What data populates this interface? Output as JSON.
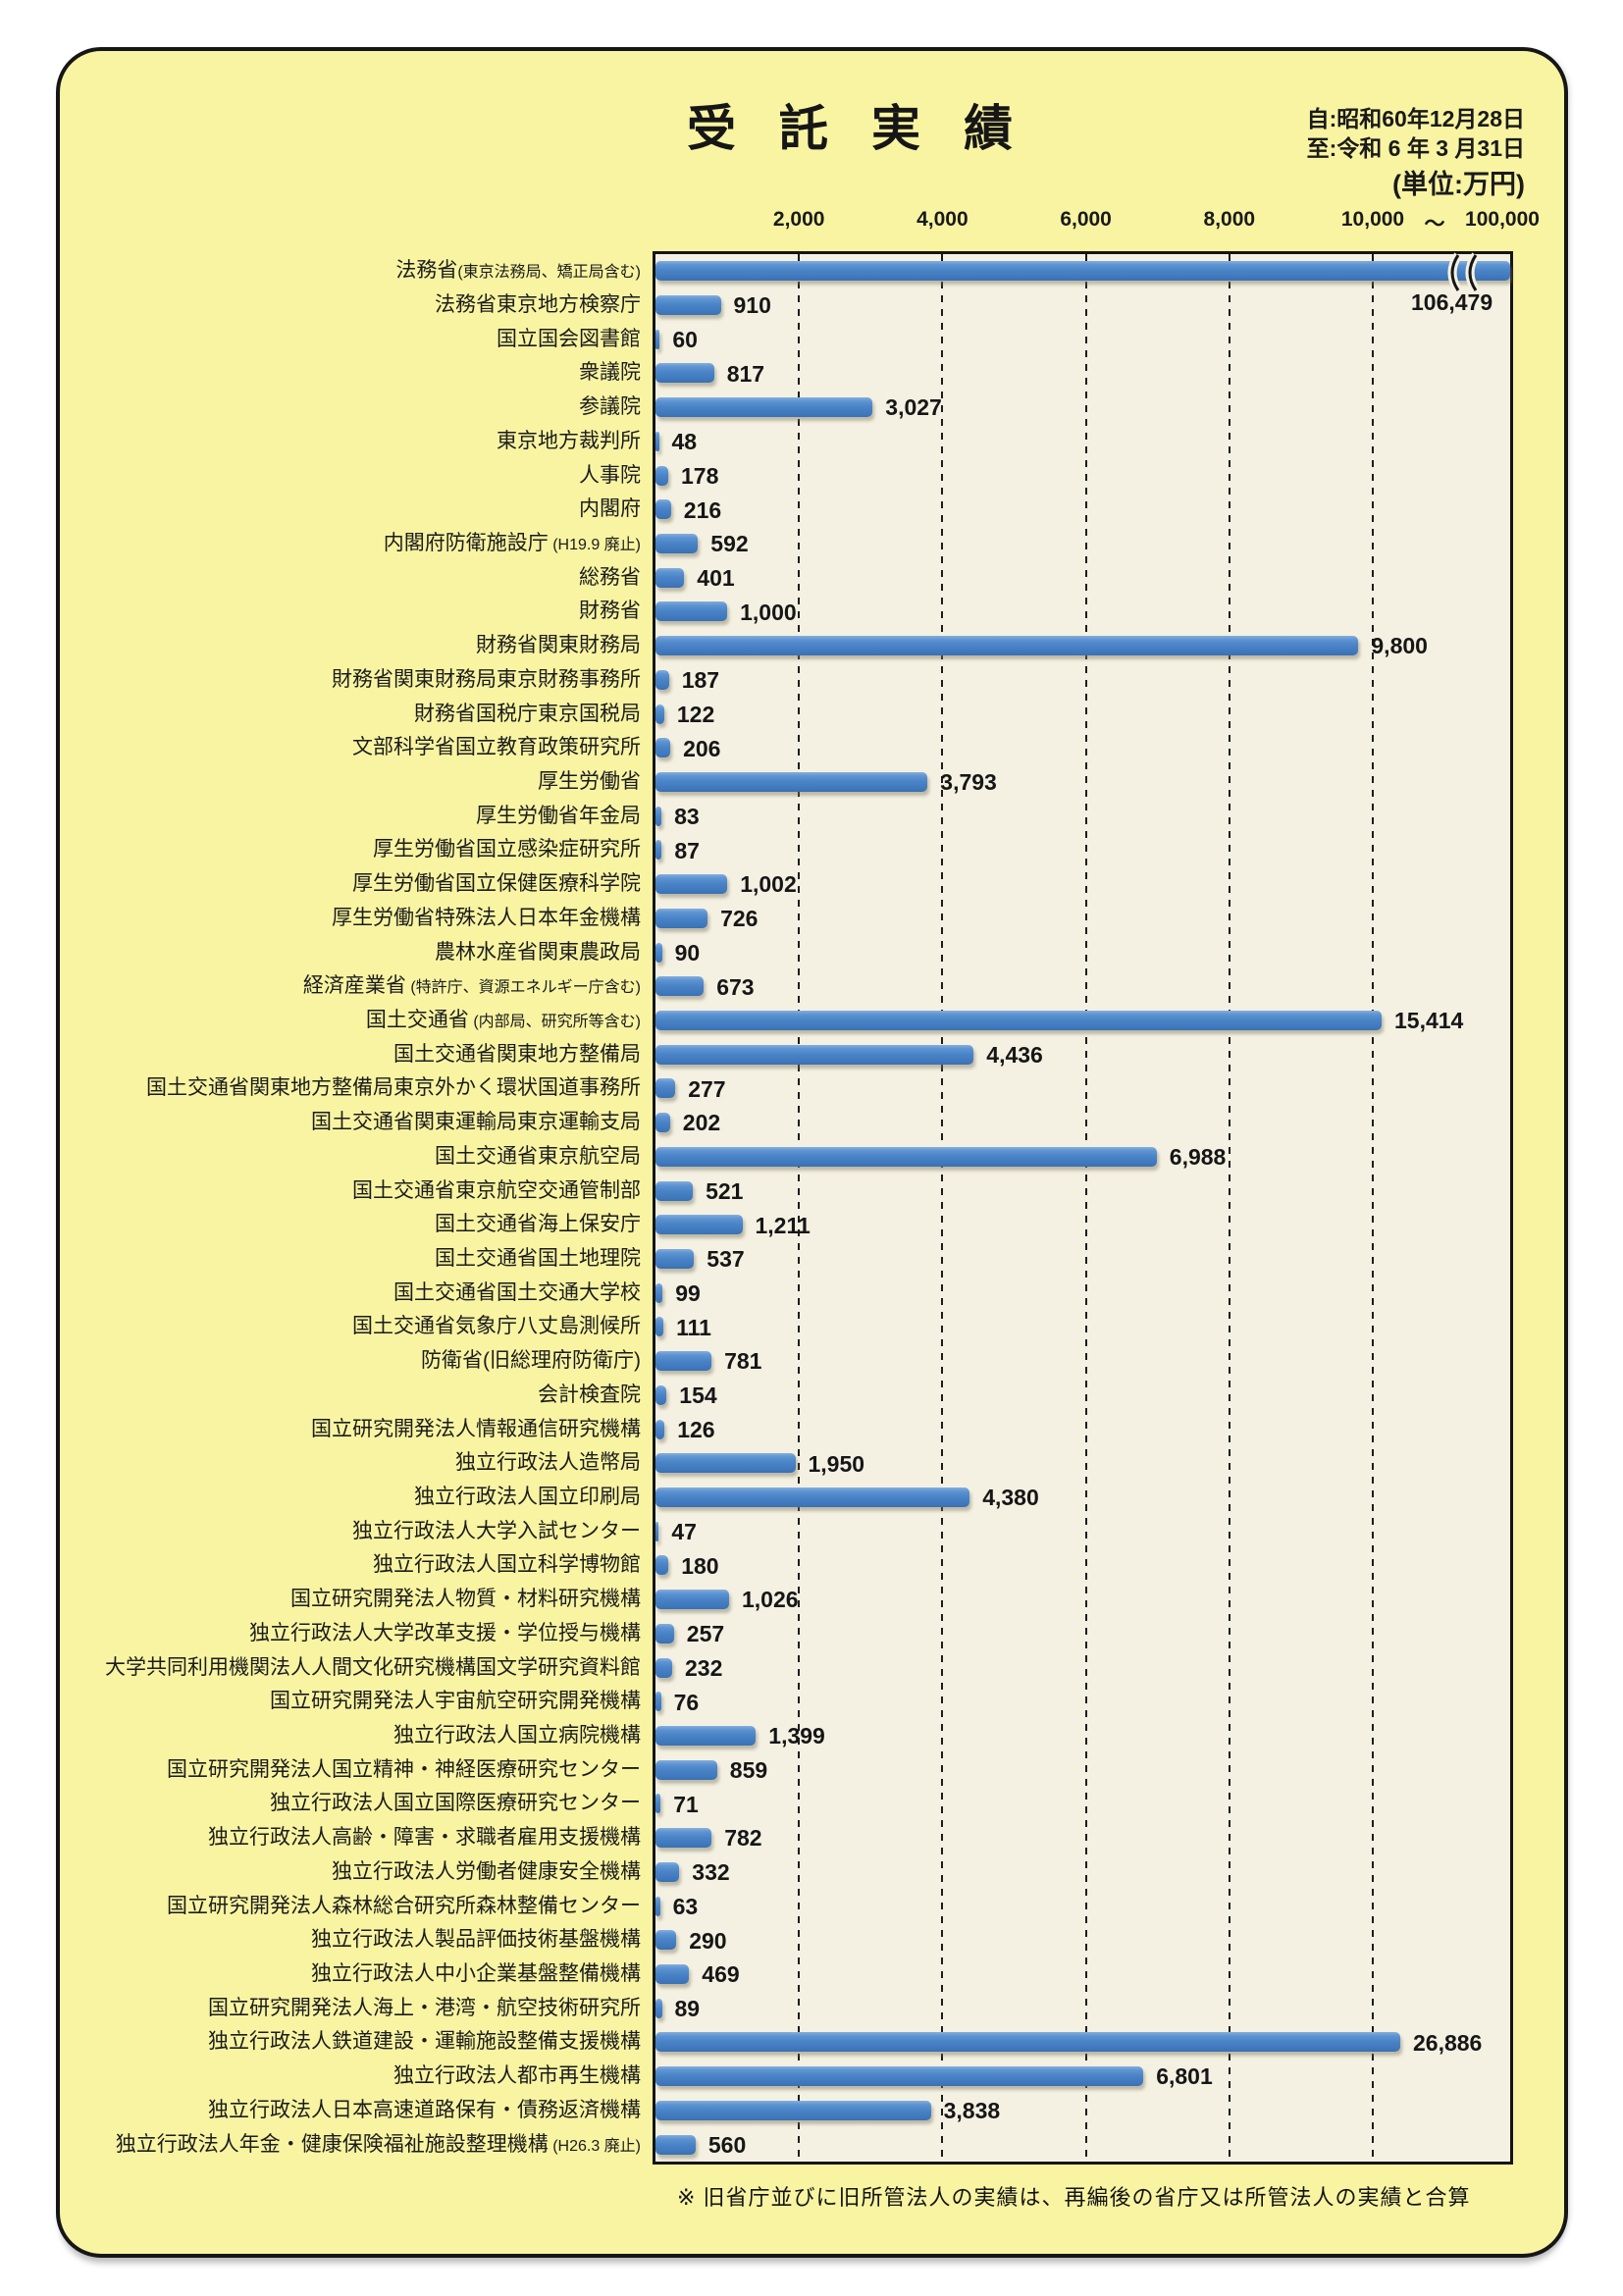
{
  "header": {
    "title": "受託実績",
    "date_from": "自:昭和60年12月28日",
    "date_to": "至:令和 6 年 3 月31日",
    "unit": "(単位:万円)"
  },
  "footnote": "※ 旧省庁並びに旧所管法人の実績は、再編後の省庁又は所管法人の実績と合算",
  "colors": {
    "bar": "#4a84c7",
    "sheet_background": "#f8f4a2",
    "plot_background": "#f4f1e2",
    "border": "#141414"
  },
  "chart_data": {
    "type": "bar",
    "orientation": "horizontal",
    "title": "受託実績",
    "unit": "万円",
    "x_axis": {
      "tick_values": [
        2000,
        4000,
        6000,
        8000,
        10000
      ],
      "tick_labels": [
        "2,000",
        "4,000",
        "6,000",
        "8,000",
        "10,000"
      ],
      "break_symbol": "〜",
      "overflow_label": "100,000",
      "linear_max": 10000,
      "overflow_max": 100000,
      "grid": "dashed-vertical"
    },
    "rows": [
      {
        "label": "法務省",
        "note": "(東京法務局、矯正局含む)",
        "sep": "",
        "value": 106479,
        "value_label": "106,479"
      },
      {
        "label": "法務省東京地方検察庁",
        "value": 910,
        "value_label": "910"
      },
      {
        "label": "国立国会図書館",
        "value": 60,
        "value_label": "60"
      },
      {
        "label": "衆議院",
        "value": 817,
        "value_label": "817"
      },
      {
        "label": "参議院",
        "value": 3027,
        "value_label": "3,027"
      },
      {
        "label": "東京地方裁判所",
        "value": 48,
        "value_label": "48"
      },
      {
        "label": "人事院",
        "value": 178,
        "value_label": "178"
      },
      {
        "label": "内閣府",
        "value": 216,
        "value_label": "216"
      },
      {
        "label": "内閣府防衛施設庁",
        "note": "(H19.9 廃止)",
        "sep": " ",
        "value": 592,
        "value_label": "592"
      },
      {
        "label": "総務省",
        "value": 401,
        "value_label": "401"
      },
      {
        "label": "財務省",
        "value": 1000,
        "value_label": "1,000"
      },
      {
        "label": "財務省関東財務局",
        "value": 9800,
        "value_label": "9,800"
      },
      {
        "label": "財務省関東財務局東京財務事務所",
        "value": 187,
        "value_label": "187"
      },
      {
        "label": "財務省国税庁東京国税局",
        "value": 122,
        "value_label": "122"
      },
      {
        "label": "文部科学省国立教育政策研究所",
        "value": 206,
        "value_label": "206"
      },
      {
        "label": "厚生労働省",
        "value": 3793,
        "value_label": "3,793"
      },
      {
        "label": "厚生労働省年金局",
        "value": 83,
        "value_label": "83"
      },
      {
        "label": "厚生労働省国立感染症研究所",
        "value": 87,
        "value_label": "87"
      },
      {
        "label": "厚生労働省国立保健医療科学院",
        "value": 1002,
        "value_label": "1,002"
      },
      {
        "label": "厚生労働省特殊法人日本年金機構",
        "value": 726,
        "value_label": "726"
      },
      {
        "label": "農林水産省関東農政局",
        "value": 90,
        "value_label": "90"
      },
      {
        "label": "経済産業省",
        "note": "(特許庁、資源エネルギー庁含む)",
        "sep": " ",
        "value": 673,
        "value_label": "673"
      },
      {
        "label": "国土交通省",
        "note": "(内部局、研究所等含む)",
        "sep": " ",
        "value": 15414,
        "value_label": "15,414"
      },
      {
        "label": "国土交通省関東地方整備局",
        "value": 4436,
        "value_label": "4,436"
      },
      {
        "label": "国土交通省関東地方整備局東京外かく環状国道事務所",
        "value": 277,
        "value_label": "277"
      },
      {
        "label": "国土交通省関東運輸局東京運輸支局",
        "value": 202,
        "value_label": "202"
      },
      {
        "label": "国土交通省東京航空局",
        "value": 6988,
        "value_label": "6,988"
      },
      {
        "label": "国土交通省東京航空交通管制部",
        "value": 521,
        "value_label": "521"
      },
      {
        "label": "国土交通省海上保安庁",
        "value": 1211,
        "value_label": "1,211"
      },
      {
        "label": "国土交通省国土地理院",
        "value": 537,
        "value_label": "537"
      },
      {
        "label": "国土交通省国土交通大学校",
        "value": 99,
        "value_label": "99"
      },
      {
        "label": "国土交通省気象庁八丈島測候所",
        "value": 111,
        "value_label": "111"
      },
      {
        "label": "防衛省(旧総理府防衛庁)",
        "value": 781,
        "value_label": "781"
      },
      {
        "label": "会計検査院",
        "value": 154,
        "value_label": "154"
      },
      {
        "label": "国立研究開発法人情報通信研究機構",
        "value": 126,
        "value_label": "126"
      },
      {
        "label": "独立行政法人造幣局",
        "value": 1950,
        "value_label": "1,950"
      },
      {
        "label": "独立行政法人国立印刷局",
        "value": 4380,
        "value_label": "4,380"
      },
      {
        "label": "独立行政法人大学入試センター",
        "value": 47,
        "value_label": "47"
      },
      {
        "label": "独立行政法人国立科学博物館",
        "value": 180,
        "value_label": "180"
      },
      {
        "label": "国立研究開発法人物質・材料研究機構",
        "value": 1026,
        "value_label": "1,026"
      },
      {
        "label": "独立行政法人大学改革支援・学位授与機構",
        "value": 257,
        "value_label": "257"
      },
      {
        "label": "大学共同利用機関法人人間文化研究機構国文学研究資料館",
        "value": 232,
        "value_label": "232"
      },
      {
        "label": "国立研究開発法人宇宙航空研究開発機構",
        "value": 76,
        "value_label": "76"
      },
      {
        "label": "独立行政法人国立病院機構",
        "value": 1399,
        "value_label": "1,399"
      },
      {
        "label": "国立研究開発法人国立精神・神経医療研究センター",
        "value": 859,
        "value_label": "859"
      },
      {
        "label": "独立行政法人国立国際医療研究センター",
        "value": 71,
        "value_label": "71"
      },
      {
        "label": "独立行政法人高齢・障害・求職者雇用支援機構",
        "value": 782,
        "value_label": "782"
      },
      {
        "label": "独立行政法人労働者健康安全機構",
        "value": 332,
        "value_label": "332"
      },
      {
        "label": "国立研究開発法人森林総合研究所森林整備センター",
        "value": 63,
        "value_label": "63"
      },
      {
        "label": "独立行政法人製品評価技術基盤機構",
        "value": 290,
        "value_label": "290"
      },
      {
        "label": "独立行政法人中小企業基盤整備機構",
        "value": 469,
        "value_label": "469"
      },
      {
        "label": "国立研究開発法人海上・港湾・航空技術研究所",
        "value": 89,
        "value_label": "89"
      },
      {
        "label": "独立行政法人鉄道建設・運輸施設整備支援機構",
        "value": 26886,
        "value_label": "26,886"
      },
      {
        "label": "独立行政法人都市再生機構",
        "value": 6801,
        "value_label": "6,801"
      },
      {
        "label": "独立行政法人日本高速道路保有・債務返済機構",
        "value": 3838,
        "value_label": "3,838"
      },
      {
        "label": "独立行政法人年金・健康保険福祉施設整理機構",
        "note": "(H26.3 廃止)",
        "sep": " ",
        "value": 560,
        "value_label": "560"
      }
    ]
  }
}
